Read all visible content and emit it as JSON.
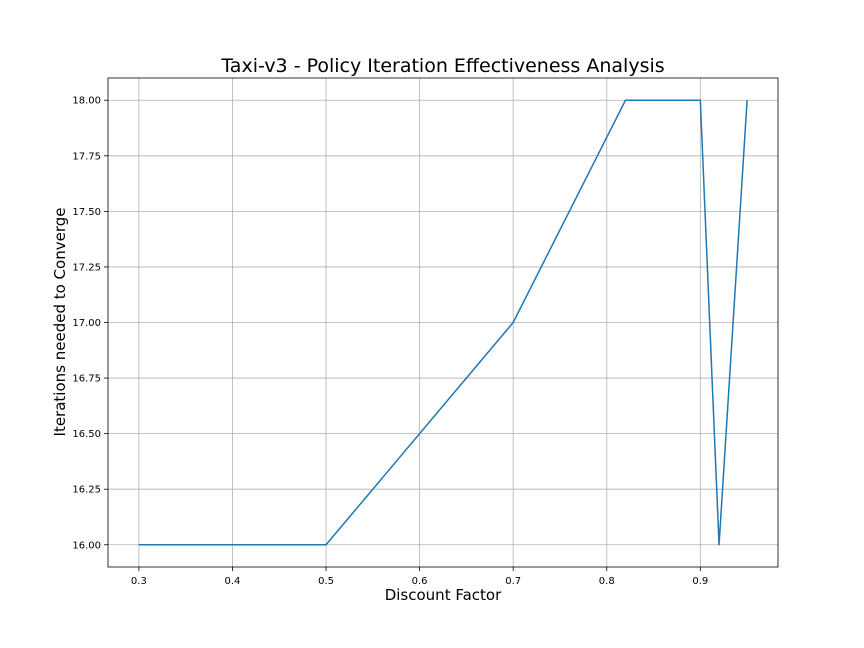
{
  "chart_data": {
    "type": "line",
    "title": "Taxi-v3 - Policy Iteration Effectiveness Analysis",
    "xlabel": "Discount Factor",
    "ylabel": "Iterations needed to Converge",
    "xlim": [
      0.267,
      0.983
    ],
    "ylim": [
      15.9,
      18.1
    ],
    "xticks": [
      0.3,
      0.4,
      0.5,
      0.6,
      0.7,
      0.8,
      0.9
    ],
    "xtick_labels": [
      "0.3",
      "0.4",
      "0.5",
      "0.6",
      "0.7",
      "0.8",
      "0.9"
    ],
    "yticks": [
      16.0,
      16.25,
      16.5,
      16.75,
      17.0,
      17.25,
      17.5,
      17.75,
      18.0
    ],
    "ytick_labels": [
      "16.00",
      "16.25",
      "16.50",
      "16.75",
      "17.00",
      "17.25",
      "17.50",
      "17.75",
      "18.00"
    ],
    "grid": true,
    "series": [
      {
        "color": "#1f77b4",
        "x": [
          0.3,
          0.5,
          0.7,
          0.82,
          0.9,
          0.92,
          0.95
        ],
        "y": [
          16,
          16,
          17,
          18,
          18,
          16,
          18
        ]
      }
    ]
  }
}
